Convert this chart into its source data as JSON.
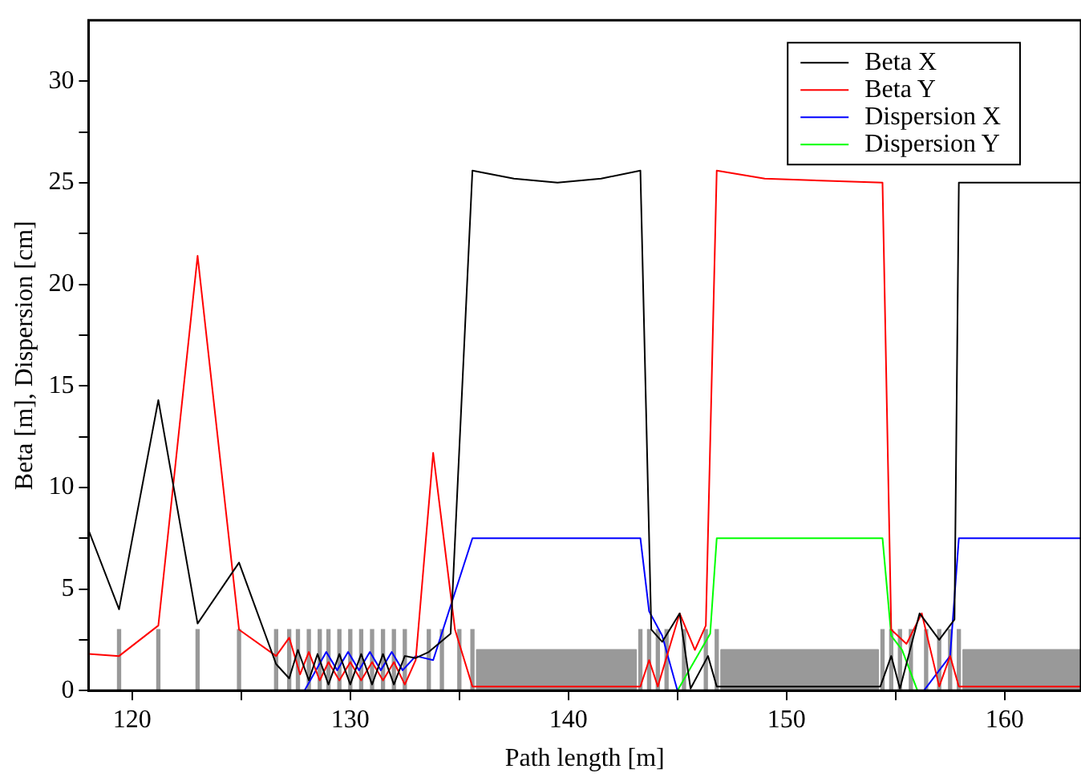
{
  "chart_data": {
    "type": "line",
    "xlabel": "Path length [m]",
    "ylabel": "Beta [m], Dispersion [cm]",
    "xlim": [
      118,
      163.5
    ],
    "xticks": [
      120,
      {
        "value": 125,
        "label": null
      },
      130,
      {
        "value": 135,
        "label": null
      },
      140,
      {
        "value": 145,
        "label": null
      },
      150,
      {
        "value": 155,
        "label": null
      },
      160
    ],
    "ylim": [
      0,
      33
    ],
    "yticks": [
      0,
      {
        "value": 2.5,
        "label": null
      },
      5,
      {
        "value": 7.5,
        "label": null
      },
      10,
      {
        "value": 12.5,
        "label": null
      },
      15,
      {
        "value": 17.5,
        "label": null
      },
      20,
      {
        "value": 22.5,
        "label": null
      },
      25,
      {
        "value": 27.5,
        "label": null
      },
      30
    ],
    "legend": "top right",
    "marker": "none",
    "line_style": "solid",
    "series": [
      {
        "type": "area",
        "color": "#999999",
        "x": [
          135.8,
          135.8,
          143.1,
          143.1,
          147.0,
          147.0,
          154.2,
          154.2,
          158.1,
          158.1,
          163.5
        ],
        "values": [
          0,
          2,
          2,
          0,
          0,
          2,
          2,
          0,
          0,
          2,
          2
        ]
      },
      {
        "type": "bar",
        "color": "#999999",
        "x": [
          119.4,
          121.2,
          123.0,
          124.9,
          126.6,
          127.2,
          127.6,
          128.1,
          128.6,
          129.0,
          129.5,
          130.0,
          130.5,
          131.0,
          131.5,
          132.0,
          132.5,
          133.6,
          134.2,
          135.0,
          135.6,
          143.3,
          143.7,
          144.1,
          144.5,
          145.3,
          146.3,
          146.8,
          154.4,
          154.8,
          155.2,
          155.7,
          156.4,
          157.0,
          157.5,
          157.9
        ],
        "values": [
          3,
          3,
          3,
          3,
          3,
          3,
          3,
          3,
          3,
          3,
          3,
          3,
          3,
          3,
          3,
          3,
          3,
          3,
          3,
          3,
          3,
          3,
          3,
          3,
          3,
          3,
          3,
          3,
          3,
          3,
          3,
          3,
          3,
          3,
          3,
          3
        ]
      },
      {
        "name": "Beta X",
        "color": "#000000",
        "x": [
          118,
          119.4,
          121.2,
          123.0,
          124.9,
          126.6,
          127.2,
          127.6,
          128.1,
          128.5,
          129.0,
          129.5,
          130.0,
          130.5,
          131.0,
          131.5,
          132.0,
          132.5,
          133.0,
          133.6,
          134.6,
          135.6,
          137.5,
          139.5,
          141.5,
          143.3,
          143.8,
          144.3,
          145.1,
          145.6,
          146.4,
          146.8,
          150.5,
          154.3,
          154.8,
          155.2,
          156.1,
          157.0,
          157.7,
          157.9,
          163.5
        ],
        "values": [
          7.9,
          4.0,
          14.3,
          3.3,
          6.3,
          1.3,
          0.6,
          2.0,
          0.5,
          1.8,
          0.3,
          1.8,
          0.3,
          1.8,
          0.3,
          1.8,
          0.3,
          1.7,
          1.6,
          1.9,
          2.8,
          25.6,
          25.2,
          25.0,
          25.2,
          25.6,
          3.0,
          2.4,
          3.8,
          0.1,
          1.7,
          0.2,
          0.2,
          0.2,
          1.7,
          0.1,
          3.8,
          2.5,
          3.5,
          25.0,
          25.0
        ]
      },
      {
        "name": "Beta Y",
        "color": "#ff0000",
        "x": [
          118,
          119.4,
          121.2,
          123.0,
          124.9,
          126.6,
          127.2,
          127.7,
          128.1,
          128.6,
          129.0,
          129.5,
          130.0,
          130.5,
          131.0,
          131.5,
          132.0,
          132.5,
          133.0,
          133.8,
          134.8,
          135.6,
          143.3,
          143.7,
          144.1,
          145.1,
          145.8,
          146.3,
          146.8,
          149,
          154.4,
          154.8,
          155.5,
          156.2,
          157.0,
          157.5,
          157.9,
          163.5
        ],
        "values": [
          1.8,
          1.7,
          3.2,
          21.4,
          3.0,
          1.7,
          2.6,
          0.8,
          1.9,
          0.5,
          1.4,
          0.5,
          1.4,
          0.5,
          1.4,
          0.5,
          1.4,
          0.3,
          1.5,
          11.7,
          3.0,
          0.2,
          0.2,
          1.5,
          0.2,
          3.8,
          2.0,
          3.2,
          25.6,
          25.2,
          25.0,
          3.0,
          2.3,
          3.8,
          0.2,
          1.7,
          0.2,
          0.2
        ]
      },
      {
        "name": "Dispersion X",
        "color": "#0000ff",
        "x": [
          127.9,
          128.9,
          129.4,
          129.9,
          130.4,
          130.9,
          131.4,
          131.9,
          132.4,
          133.0,
          133.8,
          135.6,
          143.3,
          143.7,
          144.3,
          145.0,
          156.3,
          157.5,
          157.9,
          163.5
        ],
        "values": [
          0,
          1.9,
          1.0,
          1.9,
          1.0,
          1.9,
          1.0,
          1.9,
          1.0,
          1.7,
          1.5,
          7.5,
          7.5,
          3.9,
          2.7,
          0,
          0,
          1.7,
          7.5,
          7.5
        ]
      },
      {
        "name": "Dispersion Y",
        "color": "#00ff00",
        "x": [
          145.0,
          146.5,
          146.8,
          154.4,
          154.8,
          155.3,
          156.0
        ],
        "values": [
          0,
          2.8,
          7.5,
          7.5,
          2.7,
          2.0,
          0
        ]
      }
    ]
  }
}
